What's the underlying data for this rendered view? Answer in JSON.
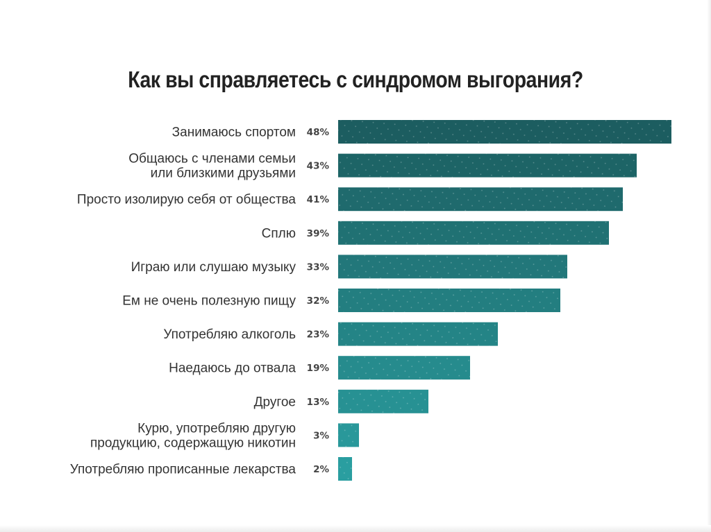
{
  "chart_data": {
    "type": "bar",
    "orientation": "horizontal",
    "title": "Как вы справляетесь с синдромом выгорания?",
    "categories": [
      [
        "Занимаюсь спортом"
      ],
      [
        "Общаюсь с членами семьи",
        "или близкими друзьями"
      ],
      [
        "Просто изолирую себя от общества"
      ],
      [
        "Сплю"
      ],
      [
        "Играю или слушаю музыку"
      ],
      [
        "Ем не очень полезную пищу"
      ],
      [
        "Употребляю алкоголь"
      ],
      [
        "Наедаюсь до отвала"
      ],
      [
        "Другое"
      ],
      [
        "Курю, употребляю другую",
        "продукцию, содержащую никотин"
      ],
      [
        "Употребляю прописанные лекарства"
      ]
    ],
    "values": [
      48,
      43,
      41,
      39,
      33,
      32,
      23,
      19,
      13,
      3,
      2
    ],
    "value_labels": [
      "48%",
      "43%",
      "41%",
      "39%",
      "33%",
      "32%",
      "23%",
      "19%",
      "13%",
      "3%",
      "2%"
    ],
    "unit": "%",
    "xlim": [
      0,
      48
    ],
    "grid": false,
    "legend": "none",
    "colors": {
      "bar_dark": "#1c5d60",
      "bar_light": "#2a9ea0",
      "text": "#333333",
      "value_text": "#444444",
      "title": "#222222"
    }
  }
}
